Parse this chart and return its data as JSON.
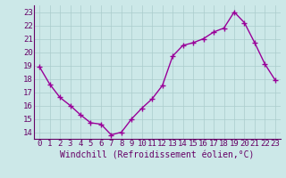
{
  "hours": [
    0,
    1,
    2,
    3,
    4,
    5,
    6,
    7,
    8,
    9,
    10,
    11,
    12,
    13,
    14,
    15,
    16,
    17,
    18,
    19,
    20,
    21,
    22,
    23
  ],
  "values": [
    18.9,
    17.6,
    16.6,
    16.0,
    15.3,
    14.7,
    14.6,
    13.8,
    14.0,
    15.0,
    15.8,
    16.5,
    17.5,
    19.7,
    20.5,
    20.7,
    21.0,
    21.5,
    21.8,
    23.0,
    22.2,
    20.7,
    19.1,
    17.9
  ],
  "line_color": "#990099",
  "marker": "+",
  "marker_size": 4,
  "marker_linewidth": 1.0,
  "xlabel": "Windchill (Refroidissement éolien,°C)",
  "ylim": [
    13.5,
    23.5
  ],
  "yticks": [
    14,
    15,
    16,
    17,
    18,
    19,
    20,
    21,
    22,
    23
  ],
  "xticks": [
    0,
    1,
    2,
    3,
    4,
    5,
    6,
    7,
    8,
    9,
    10,
    11,
    12,
    13,
    14,
    15,
    16,
    17,
    18,
    19,
    20,
    21,
    22,
    23
  ],
  "background_color": "#cce8e8",
  "grid_color": "#aacccc",
  "tick_label_color": "#660066",
  "xlabel_color": "#660066",
  "xlabel_fontsize": 7.0,
  "tick_fontsize": 6.5,
  "linewidth": 1.0
}
